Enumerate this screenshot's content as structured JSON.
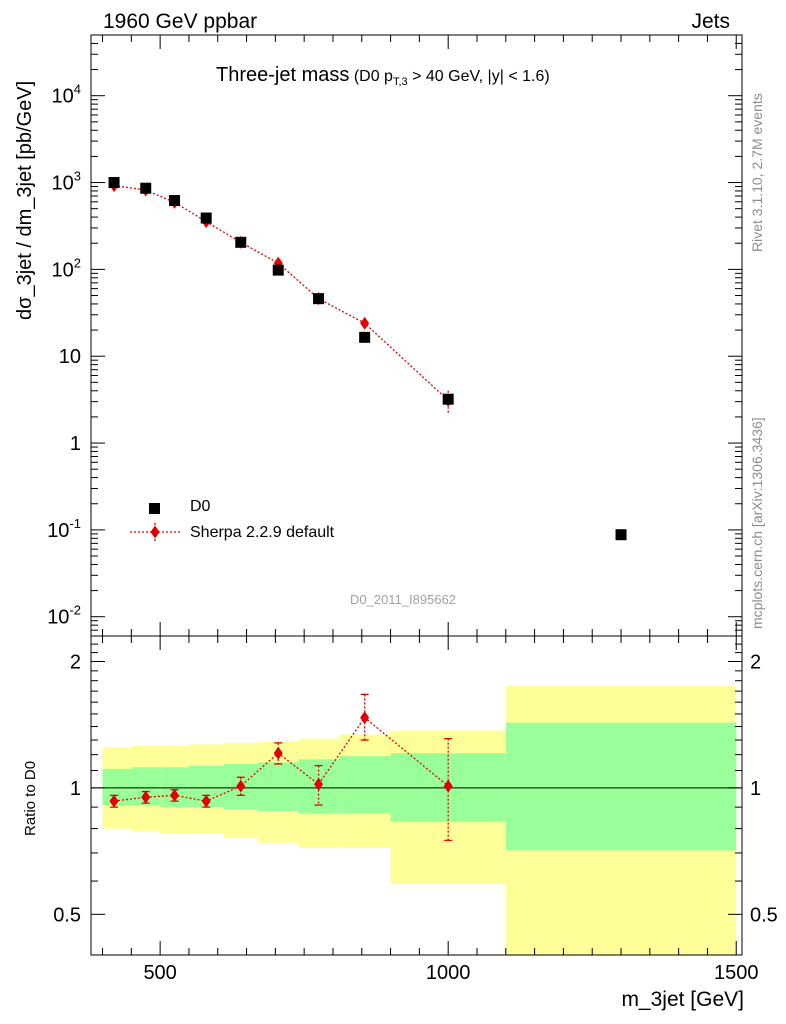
{
  "header": {
    "left": "1960 GeV ppbar",
    "right": "Jets"
  },
  "side_text": {
    "rivet": "Rivet 3.1.10,  2.7M events",
    "mcplots": "mcplots.cern.ch [arXiv:1306.3436]"
  },
  "title": {
    "main": "Three-jet mass",
    "cut_prefix": "(D0 p",
    "cut_sub": "T,3",
    "cut_suffix": " > 40 GeV, |y| < 1.6)"
  },
  "watermark": "D0_2011_I895662",
  "legend": {
    "data_label": "D0",
    "mc_label": "Sherpa 2.2.9 default"
  },
  "colors": {
    "mc": "#e00000",
    "band_inner": "#99ff99",
    "band_outer": "#ffff99",
    "data": "#000000"
  },
  "chart_data": [
    {
      "type": "scatter",
      "panel": "main",
      "ylabel": "dσ_3jet / dm_3jet [pb/GeV]",
      "y_scale": "log",
      "xlim": [
        380,
        1510
      ],
      "ylim": [
        0.006,
        50000
      ],
      "ytick_labels": [
        "10^-2",
        "10^-1",
        "1",
        "10",
        "10^2",
        "10^3",
        "10^4"
      ],
      "legend_position": "bottom-left",
      "series": [
        {
          "name": "D0",
          "x": [
            420,
            475,
            525,
            580,
            640,
            705,
            775,
            855,
            1000,
            1300
          ],
          "y": [
            1000,
            860,
            620,
            390,
            205,
            98,
            46,
            16.5,
            3.2,
            0.088
          ]
        },
        {
          "name": "Sherpa 2.2.9 default",
          "x": [
            420,
            475,
            525,
            580,
            640,
            705,
            775,
            855,
            1000
          ],
          "y": [
            920,
            820,
            590,
            355,
            205,
            118,
            46,
            24,
            3.1
          ],
          "y_err_low": [
            80,
            70,
            50,
            30,
            18,
            10,
            5,
            3,
            0.9
          ],
          "y_err_high": [
            80,
            70,
            50,
            30,
            18,
            10,
            5,
            3,
            0.9
          ]
        }
      ]
    },
    {
      "type": "line",
      "panel": "ratio",
      "ylabel": "Ratio to D0",
      "xlabel": "m_3jet [GeV]",
      "xlim": [
        380,
        1510
      ],
      "ylim": [
        0.4,
        2.3
      ],
      "xtick_labels": [
        "500",
        "1000",
        "1500"
      ],
      "ytick_labels": [
        "0.5",
        "1",
        "2"
      ],
      "bands": {
        "edges": [
          400,
          450,
          500,
          550,
          610,
          670,
          740,
          810,
          900,
          1100,
          1500
        ],
        "inner_low": [
          0.91,
          0.91,
          0.9,
          0.9,
          0.89,
          0.88,
          0.87,
          0.87,
          0.83,
          0.71
        ],
        "inner_high": [
          1.11,
          1.12,
          1.12,
          1.13,
          1.14,
          1.15,
          1.17,
          1.19,
          1.21,
          1.43
        ],
        "outer_low": [
          0.8,
          0.79,
          0.78,
          0.78,
          0.76,
          0.74,
          0.72,
          0.72,
          0.59,
          0.37
        ],
        "outer_high": [
          1.25,
          1.26,
          1.26,
          1.27,
          1.28,
          1.29,
          1.31,
          1.34,
          1.37,
          1.75
        ]
      },
      "series": [
        {
          "name": "Sherpa 2.2.9 default",
          "x": [
            420,
            475,
            525,
            580,
            640,
            705,
            775,
            855,
            1000
          ],
          "y": [
            0.93,
            0.95,
            0.96,
            0.93,
            1.01,
            1.21,
            1.02,
            1.47,
            1.01
          ],
          "y_err_low": [
            0.03,
            0.03,
            0.03,
            0.03,
            0.05,
            0.07,
            0.11,
            0.17,
            0.26
          ],
          "y_err_high": [
            0.03,
            0.03,
            0.03,
            0.03,
            0.05,
            0.07,
            0.11,
            0.2,
            0.3
          ]
        }
      ]
    }
  ]
}
